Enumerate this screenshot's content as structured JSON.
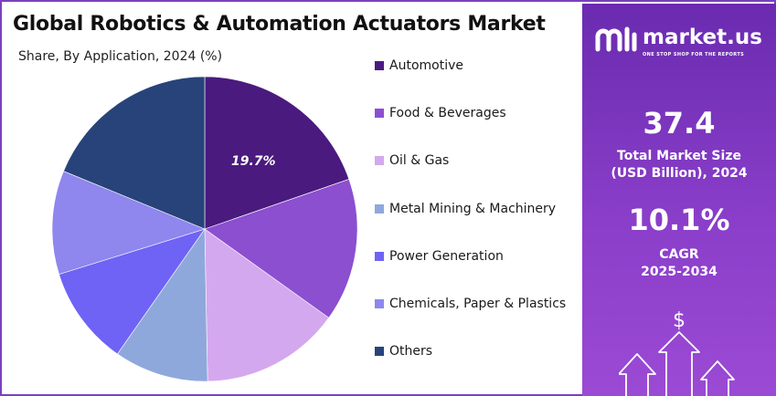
{
  "chart_data": {
    "type": "pie",
    "title": "Global Robotics & Automation Actuators Market",
    "subtitle": "Share, By Application, 2024 (%)",
    "categories": [
      "Automotive",
      "Food & Beverages",
      "Oil & Gas",
      "Metal Mining & Machinery",
      "Power Generation",
      "Chemicals, Paper & Plastics",
      "Others"
    ],
    "values": [
      19.7,
      15.2,
      14.8,
      10.0,
      10.5,
      11.0,
      18.8
    ],
    "colors": [
      "#4a1a7e",
      "#8b4fd0",
      "#d4a8ee",
      "#8fa8dc",
      "#6f63f5",
      "#8f86ee",
      "#27437a"
    ],
    "data_labels": [
      "19.7%",
      "",
      "",
      "",
      "",
      "",
      ""
    ],
    "legend_position": "right"
  },
  "panel": {
    "brand": "market.us",
    "tagline": "ONE STOP SHOP FOR THE REPORTS",
    "market_size_value": "37.4",
    "market_size_label_line1": "Total Market Size",
    "market_size_label_line2": "(USD Billion), 2024",
    "cagr_value": "10.1%",
    "cagr_label_line1": "CAGR",
    "cagr_label_line2": "2025-2034",
    "colors": {
      "panel_top": "#6a2bb0",
      "panel_bottom": "#9b4ad4"
    }
  }
}
